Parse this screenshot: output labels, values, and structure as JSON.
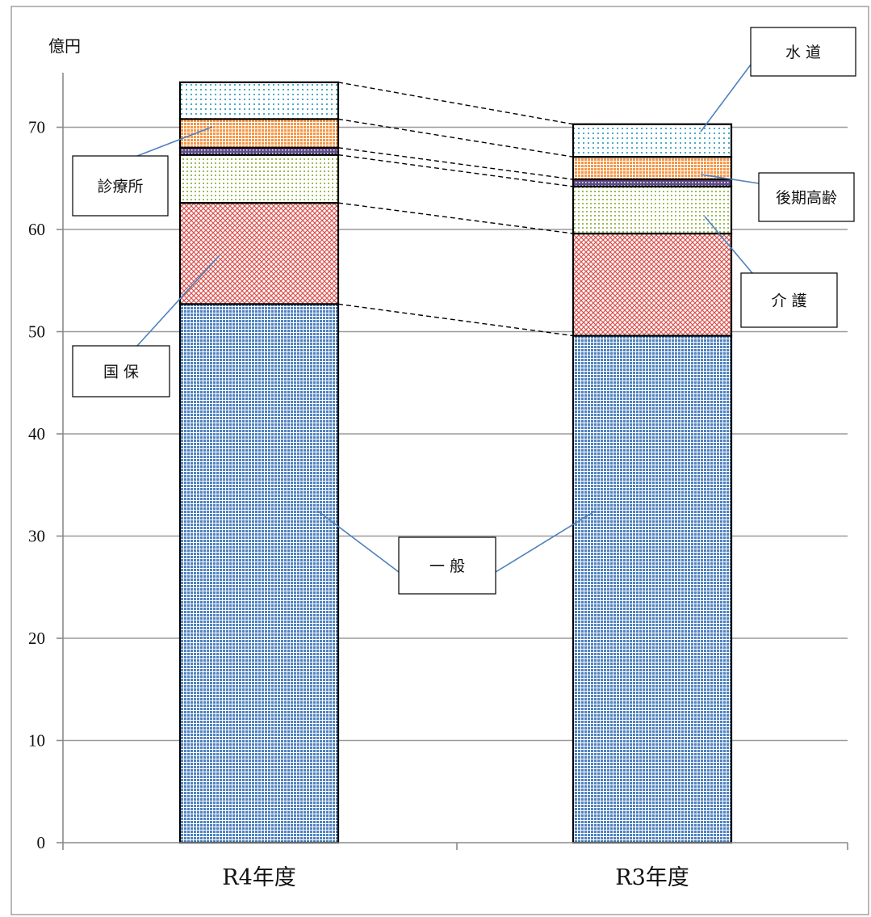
{
  "chart_data": {
    "type": "bar",
    "stacked": true,
    "ylabel": "億円",
    "ylim": [
      0,
      75
    ],
    "yticks": [
      0,
      10,
      20,
      30,
      40,
      50,
      60,
      70
    ],
    "grid": true,
    "categories": [
      "R4年度",
      "R3年度"
    ],
    "series": [
      {
        "name": "一 般",
        "values": [
          52.7,
          49.6
        ],
        "color": "#4f81bd"
      },
      {
        "name": "国 保",
        "values": [
          9.9,
          10.0
        ],
        "color": "#e6a4a4"
      },
      {
        "name": "介 護",
        "values": [
          4.7,
          4.6
        ],
        "color": "#c4d79b"
      },
      {
        "name": "後期高齢",
        "values": [
          0.7,
          0.7
        ],
        "color": "#8064a2"
      },
      {
        "name": "診療所",
        "values": [
          2.8,
          2.2
        ],
        "color": "#fac090"
      },
      {
        "name": "水 道",
        "values": [
          3.6,
          3.2
        ],
        "color": "#b7dee8"
      }
    ]
  }
}
